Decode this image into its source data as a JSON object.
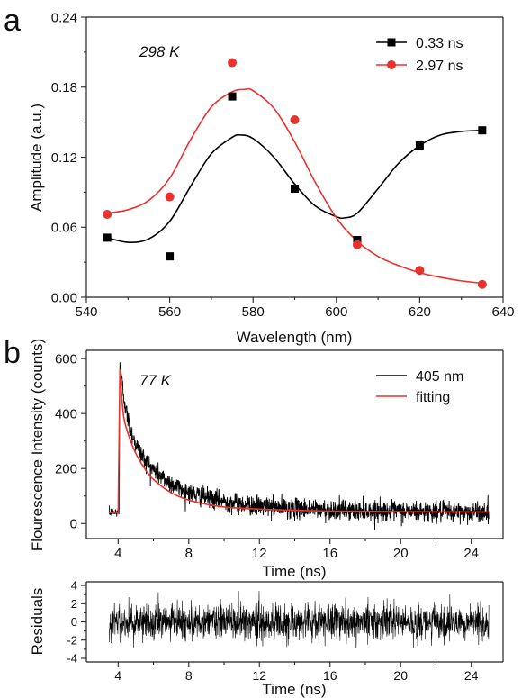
{
  "chart_data": [
    {
      "panel_label": "a",
      "type": "scatter",
      "annotation": "298 K",
      "xlabel": "Wavelength (nm)",
      "ylabel": "Amplitude (a.u.)",
      "xlim": [
        540,
        640
      ],
      "ylim": [
        0.0,
        0.24
      ],
      "xticks": [
        "540",
        "560",
        "580",
        "600",
        "620",
        "640"
      ],
      "yticks": [
        "0.00",
        "0.06",
        "0.12",
        "0.18",
        "0.24"
      ],
      "legend_position": "top-right",
      "series": [
        {
          "name": "0.33 ns",
          "color": "#000000",
          "marker": "square",
          "x": [
            545,
            560,
            575,
            590,
            605,
            620,
            635
          ],
          "y": [
            0.051,
            0.035,
            0.172,
            0.093,
            0.049,
            0.13,
            0.143
          ],
          "fit_curve": {
            "x": [
              545,
              550,
              555,
              560,
              565,
              570,
              575,
              577,
              580,
              585,
              590,
              595,
              600,
              602,
              605,
              610,
              615,
              620,
              625,
              630,
              635
            ],
            "y": [
              0.051,
              0.047,
              0.05,
              0.065,
              0.095,
              0.123,
              0.137,
              0.139,
              0.136,
              0.12,
              0.097,
              0.078,
              0.069,
              0.068,
              0.072,
              0.093,
              0.115,
              0.13,
              0.139,
              0.142,
              0.143
            ]
          }
        },
        {
          "name": "2.97 ns",
          "color": "#e8322e",
          "marker": "circle",
          "x": [
            545,
            560,
            575,
            590,
            605,
            620,
            635
          ],
          "y": [
            0.071,
            0.086,
            0.201,
            0.152,
            0.045,
            0.023,
            0.011
          ],
          "fit_curve": {
            "x": [
              545,
              550,
              555,
              560,
              565,
              570,
              575,
              578,
              580,
              585,
              590,
              595,
              600,
              605,
              610,
              615,
              620,
              625,
              630,
              635
            ],
            "y": [
              0.072,
              0.075,
              0.083,
              0.102,
              0.135,
              0.163,
              0.176,
              0.178,
              0.177,
              0.162,
              0.133,
              0.098,
              0.068,
              0.048,
              0.035,
              0.027,
              0.021,
              0.017,
              0.014,
              0.012
            ]
          }
        }
      ]
    },
    {
      "panel_label": "b",
      "type": "line",
      "annotation": "77 K",
      "xlabel": "Time (ns)",
      "ylabel": "Flourescence Intensity (counts)",
      "xlim": [
        2.2,
        25.8
      ],
      "ylim": [
        -55,
        630
      ],
      "xticks": [
        "4",
        "8",
        "12",
        "16",
        "20",
        "24"
      ],
      "yticks": [
        "0",
        "200",
        "400",
        "600"
      ],
      "legend_position": "top-right",
      "series": [
        {
          "name": "405 nm",
          "color": "#000000",
          "description_model": {
            "baseline": 40,
            "peak_time": 4.1,
            "peak_value": 590,
            "t_start": 3.5,
            "t_end": 25.0,
            "noise_amplitude": 18,
            "decay_components": [
              {
                "amplitude": 200,
                "tau": 0.35
              },
              {
                "amplitude": 250,
                "tau": 1.8
              },
              {
                "amplitude": 100,
                "tau": 5.0
              }
            ]
          }
        },
        {
          "name": "fitting",
          "color": "#e8322e",
          "x": [
            3.5,
            4.0,
            4.1,
            4.3,
            4.6,
            5.0,
            5.5,
            6.0,
            7.0,
            8.0,
            9.0,
            10.0,
            12.0,
            14.0,
            16.0,
            20.0,
            25.0
          ],
          "y": [
            40,
            40,
            560,
            395,
            320,
            255,
            200,
            160,
            112,
            85,
            70,
            60,
            52,
            48,
            45,
            43,
            42
          ]
        }
      ]
    },
    {
      "panel_label": "",
      "type": "line",
      "xlabel": "Time (ns)",
      "ylabel": "Residuals",
      "xlim": [
        2.2,
        25.8
      ],
      "ylim": [
        -4.4,
        4.4
      ],
      "xticks": [
        "4",
        "8",
        "12",
        "16",
        "20",
        "24"
      ],
      "yticks": [
        "-4",
        "-2",
        "0",
        "2",
        "4"
      ],
      "series": [
        {
          "name": "",
          "color": "#000000",
          "description_model": {
            "t_start": 3.5,
            "t_end": 25.0,
            "noise_sigma": 1.0,
            "clip": 3.4
          }
        }
      ]
    }
  ]
}
